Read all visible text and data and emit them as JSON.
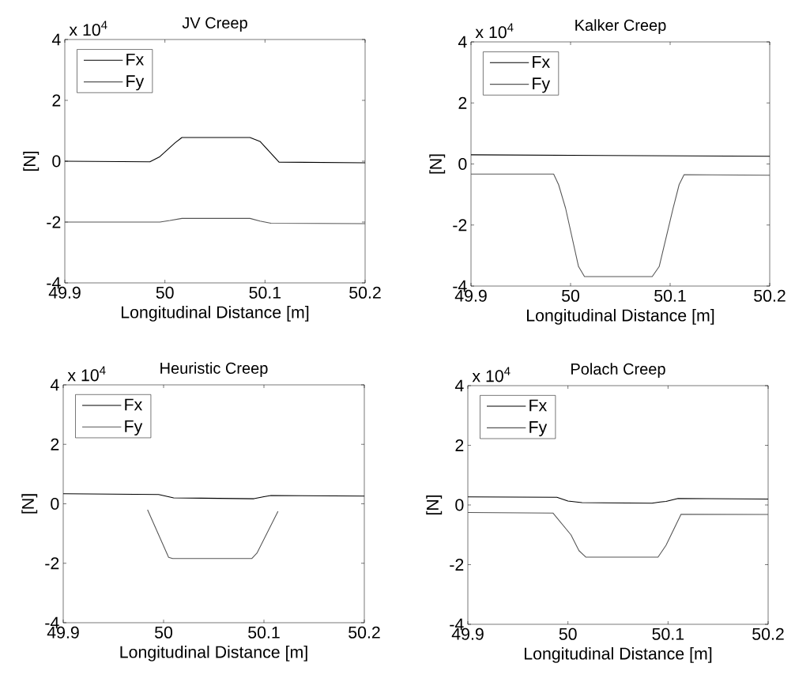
{
  "chart_data": [
    {
      "type": "line",
      "title": "JV Creep",
      "xlabel": "Longitudinal Distance [m]",
      "ylabel": "[N]",
      "annotations": [
        "x 10$^{4}$"
      ],
      "xlim": [
        49.9,
        50.2
      ],
      "ylim": [
        -4,
        4
      ],
      "xticks": [
        49.9,
        50,
        50.1,
        50.2
      ],
      "yticks": [
        -4,
        -2,
        0,
        2,
        4
      ],
      "legend": "top left",
      "marker": "none",
      "line_style": "solid",
      "series": [
        {
          "name": "Fx",
          "color": "#000000",
          "x": [
            49.9,
            49.985,
            49.995,
            50.01,
            50.017,
            50.085,
            50.095,
            50.114,
            50.2
          ],
          "values": [
            0,
            -0.02,
            0.15,
            0.6,
            0.78,
            0.78,
            0.65,
            -0.03,
            -0.05
          ]
        },
        {
          "name": "Fy",
          "color": "#555555",
          "x": [
            49.9,
            49.995,
            50.005,
            50.017,
            50.085,
            50.095,
            50.106,
            50.2
          ],
          "values": [
            -2.0,
            -2.0,
            -1.95,
            -1.88,
            -1.88,
            -1.97,
            -2.04,
            -2.05
          ]
        }
      ]
    },
    {
      "type": "line",
      "title": "Kalker Creep",
      "xlabel": "Longitudinal Distance [m]",
      "ylabel": "[N]",
      "annotations": [
        "x 10$^{4}$"
      ],
      "xlim": [
        49.9,
        50.2
      ],
      "ylim": [
        -4,
        4
      ],
      "xticks": [
        49.9,
        50,
        50.1,
        50.2
      ],
      "yticks": [
        -4,
        -2,
        0,
        2,
        4
      ],
      "legend": "top left",
      "marker": "none",
      "line_style": "solid",
      "series": [
        {
          "name": "Fx",
          "color": "#000000",
          "x": [
            49.9,
            50.2
          ],
          "values": [
            0.3,
            0.25
          ]
        },
        {
          "name": "Fy",
          "color": "#555555",
          "x": [
            49.9,
            49.983,
            49.988,
            49.995,
            50.008,
            50.014,
            50.082,
            50.089,
            50.103,
            50.109,
            50.114,
            50.2
          ],
          "values": [
            -0.33,
            -0.33,
            -0.68,
            -1.45,
            -3.36,
            -3.69,
            -3.69,
            -3.36,
            -1.45,
            -0.68,
            -0.35,
            -0.37
          ]
        }
      ]
    },
    {
      "type": "line",
      "title": "Heuristic Creep",
      "xlabel": "Longitudinal Distance [m]",
      "ylabel": "[N]",
      "annotations": [
        "x 10$^{4}$"
      ],
      "xlim": [
        49.9,
        50.2
      ],
      "ylim": [
        -4,
        4
      ],
      "xticks": [
        49.9,
        50,
        50.1,
        50.2
      ],
      "yticks": [
        -4,
        -2,
        0,
        2,
        4
      ],
      "legend": "top left",
      "marker": "none",
      "line_style": "solid",
      "series": [
        {
          "name": "Fx",
          "color": "#000000",
          "x": [
            49.9,
            49.995,
            50.01,
            50.09,
            50.1,
            50.107,
            50.2
          ],
          "values": [
            0.34,
            0.31,
            0.2,
            0.17,
            0.24,
            0.28,
            0.26
          ]
        },
        {
          "name": "Fy",
          "color": "#555555",
          "x": [
            49.984,
            50.005,
            50.009,
            50.088,
            50.093,
            50.114
          ],
          "values": [
            -0.2,
            -1.8,
            -1.84,
            -1.84,
            -1.66,
            -0.25
          ]
        }
      ]
    },
    {
      "type": "line",
      "title": "Polach Creep",
      "xlabel": "Longitudinal Distance [m]",
      "ylabel": "[N]",
      "annotations": [
        "x 10$^{4}$"
      ],
      "xlim": [
        49.9,
        50.2
      ],
      "ylim": [
        -4,
        4
      ],
      "xticks": [
        49.9,
        50,
        50.1,
        50.2
      ],
      "yticks": [
        -4,
        -2,
        0,
        2,
        4
      ],
      "legend": "top left",
      "marker": "none",
      "line_style": "solid",
      "series": [
        {
          "name": "Fx",
          "color": "#000000",
          "x": [
            49.9,
            49.989,
            50.0,
            50.014,
            50.084,
            50.092,
            50.098,
            50.11,
            50.2
          ],
          "values": [
            0.27,
            0.26,
            0.13,
            0.08,
            0.06,
            0.1,
            0.12,
            0.22,
            0.2
          ]
        },
        {
          "name": "Fy",
          "color": "#555555",
          "x": [
            49.9,
            49.985,
            50.003,
            50.011,
            50.018,
            50.09,
            50.098,
            50.113,
            50.2
          ],
          "values": [
            -0.25,
            -0.27,
            -1.0,
            -1.53,
            -1.75,
            -1.75,
            -1.35,
            -0.31,
            -0.32
          ]
        }
      ]
    }
  ]
}
